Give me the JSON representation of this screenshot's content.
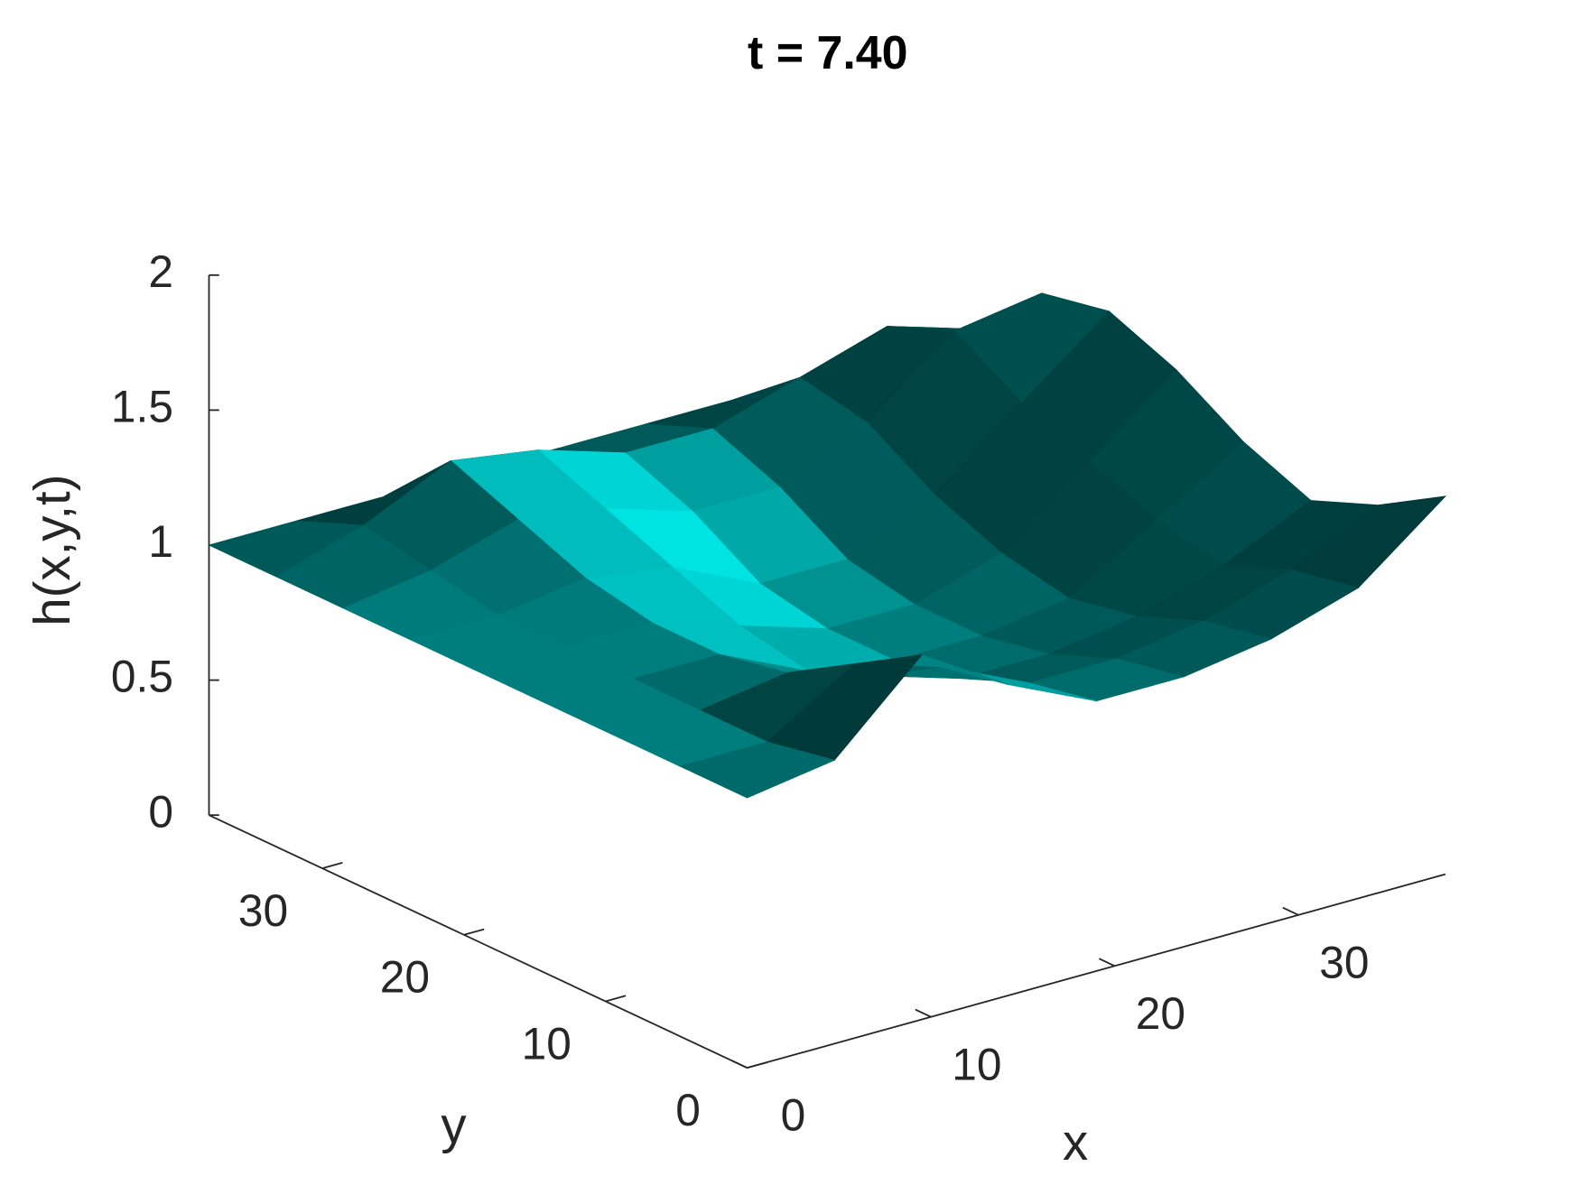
{
  "chart_data": {
    "type": "surface",
    "title": "t = 7.40",
    "x_label": "x",
    "y_label": "y",
    "z_label": "h(x,y,t)",
    "color": "#00e8e8",
    "xlim": [
      0,
      38
    ],
    "ylim": [
      0,
      38
    ],
    "zlim": [
      0,
      2
    ],
    "xticks": [
      0,
      10,
      20,
      30
    ],
    "yticks": [
      0,
      10,
      20,
      30
    ],
    "zticks": [
      0,
      0.5,
      1,
      1.5,
      2
    ],
    "x": [
      0,
      4.75,
      9.5,
      14.25,
      19,
      23.75,
      28.5,
      33.25,
      38
    ],
    "y": [
      0,
      4.75,
      9.5,
      14.25,
      19,
      23.75,
      28.5,
      33.25,
      38
    ],
    "z": [
      [
        1.0,
        1.05,
        1.35,
        1.15,
        1.0,
        1.0,
        1.05,
        1.15,
        1.4
      ],
      [
        1.0,
        1.0,
        1.2,
        1.1,
        0.95,
        0.95,
        1.0,
        1.1,
        1.25
      ],
      [
        1.0,
        1.0,
        1.05,
        0.95,
        0.85,
        0.85,
        0.9,
        1.0,
        1.15
      ],
      [
        1.0,
        1.0,
        1.0,
        0.85,
        0.8,
        0.8,
        0.85,
        1.05,
        1.25
      ],
      [
        1.0,
        1.0,
        1.0,
        0.9,
        0.8,
        0.8,
        0.9,
        1.15,
        1.4
      ],
      [
        1.0,
        1.0,
        1.05,
        1.0,
        0.85,
        0.85,
        1.0,
        1.25,
        1.5
      ],
      [
        1.0,
        1.05,
        1.15,
        1.1,
        1.0,
        1.0,
        1.15,
        1.4,
        1.45
      ],
      [
        1.0,
        1.1,
        1.25,
        1.2,
        1.1,
        1.1,
        1.2,
        1.3,
        1.2
      ],
      [
        1.0,
        1.0,
        1.0,
        1.0,
        1.0,
        1.0,
        1.0,
        1.0,
        0.97
      ]
    ]
  }
}
